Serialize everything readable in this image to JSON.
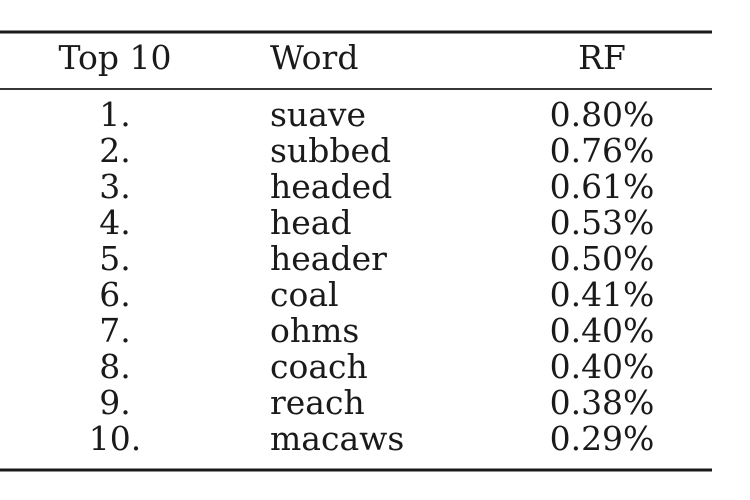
{
  "table": {
    "header": [
      "Top 10",
      "Word",
      "RF"
    ],
    "rows": [
      [
        "1.",
        "suave",
        "0.80%"
      ],
      [
        "2.",
        "subbed",
        "0.76%"
      ],
      [
        "3.",
        "headed",
        "0.61%"
      ],
      [
        "4.",
        "head",
        "0.53%"
      ],
      [
        "5.",
        "header",
        "0.50%"
      ],
      [
        "6.",
        "coal",
        "0.41%"
      ],
      [
        "7.",
        "ohms",
        "0.40%"
      ],
      [
        "8.",
        "coach",
        "0.40%"
      ],
      [
        "9.",
        "reach",
        "0.38%"
      ],
      [
        "10.",
        "macaws",
        "0.29%"
      ]
    ]
  }
}
